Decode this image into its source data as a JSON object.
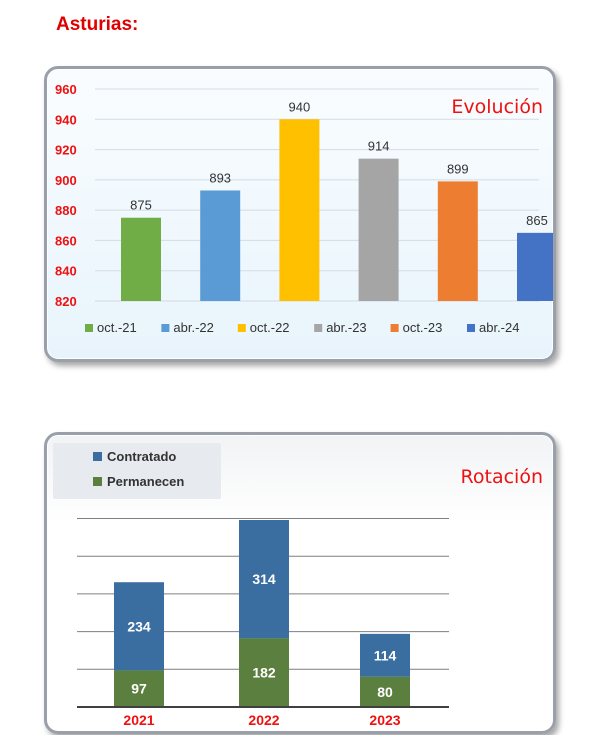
{
  "page": {
    "title": "Asturias:"
  },
  "chart_data": [
    {
      "type": "bar",
      "title": "Evolución",
      "categories": [
        "oct.-21",
        "abr.-22",
        "oct.-22",
        "abr.-23",
        "oct.-23",
        "abr.-24"
      ],
      "values": [
        875,
        893,
        940,
        914,
        899,
        865
      ],
      "colors": [
        "#70ad47",
        "#5b9bd5",
        "#ffc000",
        "#a5a5a5",
        "#ed7d31",
        "#4472c4"
      ],
      "ylim": [
        820,
        960
      ],
      "yticks": [
        820,
        840,
        860,
        880,
        900,
        920,
        940,
        960
      ],
      "xlabel": "",
      "ylabel": "",
      "grid": true,
      "legend": "bottom"
    },
    {
      "type": "bar",
      "stacked": true,
      "title": "Rotación",
      "categories": [
        "2021",
        "2022",
        "2023"
      ],
      "series": [
        {
          "name": "Permanecen",
          "values": [
            97,
            182,
            80
          ],
          "color": "#5b7f3f"
        },
        {
          "name": "Contratado",
          "values": [
            234,
            314,
            114
          ],
          "color": "#3b6ea0"
        }
      ],
      "legend": "top-left",
      "grid": true
    }
  ]
}
